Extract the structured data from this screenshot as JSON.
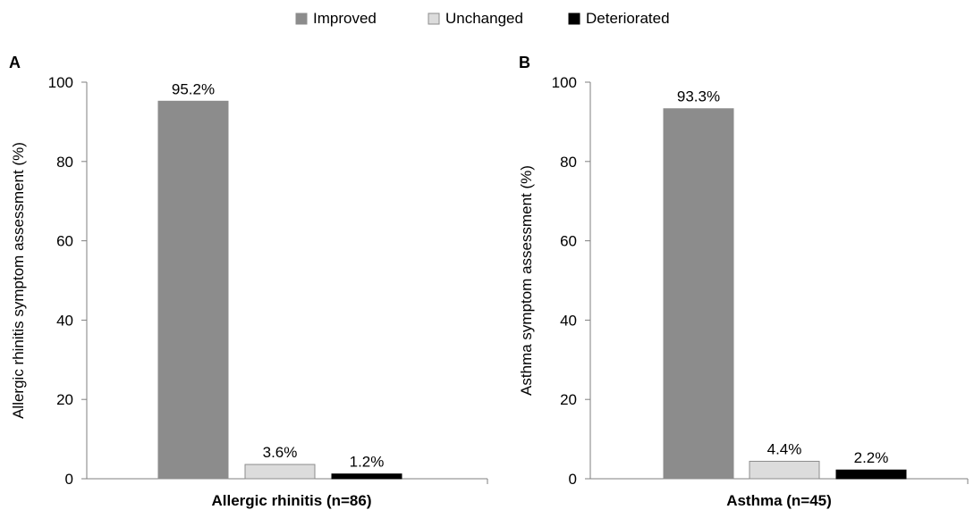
{
  "legend": [
    {
      "label": "Improved",
      "color": "#8c8c8c",
      "border": "#8c8c8c"
    },
    {
      "label": "Unchanged",
      "color": "#dcdcdc",
      "border": "#8c8c8c"
    },
    {
      "label": "Deteriorated",
      "color": "#000000",
      "border": "#000000"
    }
  ],
  "chart_data": [
    {
      "type": "bar",
      "panel_label": "A",
      "title": "",
      "xlabel": "Allergic rhinitis (n=86)",
      "ylabel": "Allergic rhinitis symptom assessment (%)",
      "ylim": [
        0,
        100
      ],
      "yticks": [
        0,
        20,
        40,
        60,
        80,
        100
      ],
      "categories": [
        "Improved",
        "Unchanged",
        "Deteriorated"
      ],
      "values": [
        95.2,
        3.6,
        1.2
      ],
      "value_labels": [
        "95.2%",
        "3.6%",
        "1.2%"
      ],
      "grid": false
    },
    {
      "type": "bar",
      "panel_label": "B",
      "title": "",
      "xlabel": "Asthma (n=45)",
      "ylabel": "Asthma symptom assessment (%)",
      "ylim": [
        0,
        100
      ],
      "yticks": [
        0,
        20,
        40,
        60,
        80,
        100
      ],
      "categories": [
        "Improved",
        "Unchanged",
        "Deteriorated"
      ],
      "values": [
        93.3,
        4.4,
        2.2
      ],
      "value_labels": [
        "93.3%",
        "4.4%",
        "2.2%"
      ],
      "grid": false
    }
  ]
}
